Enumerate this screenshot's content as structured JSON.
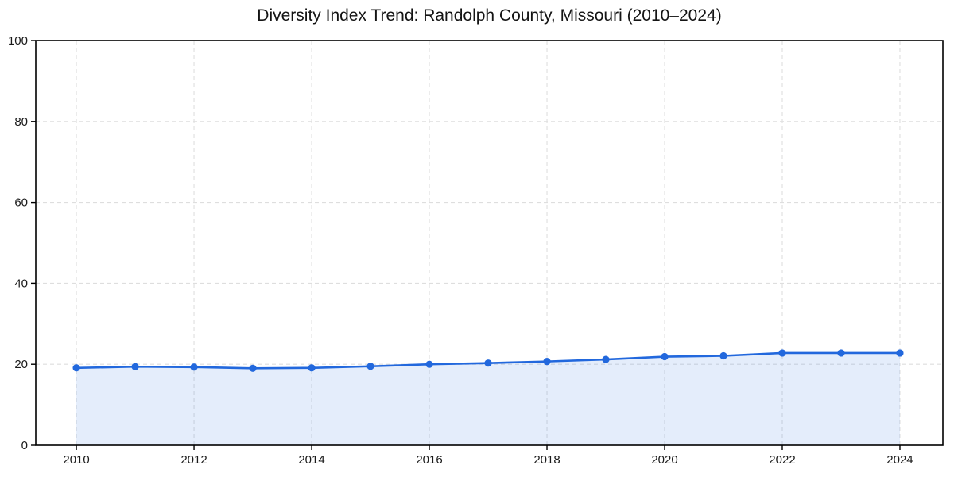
{
  "chart_data": {
    "type": "line",
    "title": "Diversity Index Trend: Randolph County, Missouri (2010–2024)",
    "x": [
      2010,
      2011,
      2012,
      2013,
      2014,
      2015,
      2016,
      2017,
      2018,
      2019,
      2020,
      2021,
      2022,
      2023,
      2024
    ],
    "values": [
      19.1,
      19.4,
      19.3,
      19.0,
      19.1,
      19.5,
      20.0,
      20.3,
      20.7,
      21.2,
      21.9,
      22.1,
      22.8,
      22.8,
      22.8
    ],
    "xlabel": "",
    "ylabel": "",
    "xlim": [
      2009.31,
      2024.73
    ],
    "ylim": [
      0,
      100
    ],
    "xticks": [
      2010,
      2012,
      2014,
      2016,
      2018,
      2020,
      2022,
      2024
    ],
    "yticks": [
      0,
      20,
      40,
      60,
      80,
      100
    ],
    "grid": true,
    "grid_style": "dashed",
    "legend": false,
    "area_fill": true,
    "colors": {
      "line": "#2268dd",
      "marker": "#2268dd",
      "fill": "#2268dd",
      "fill_opacity": 0.12,
      "grid": "#dedede",
      "axis": "#000000",
      "tick_text": "#1a1a1a",
      "title_text": "#141414",
      "background": "#ffffff"
    }
  }
}
